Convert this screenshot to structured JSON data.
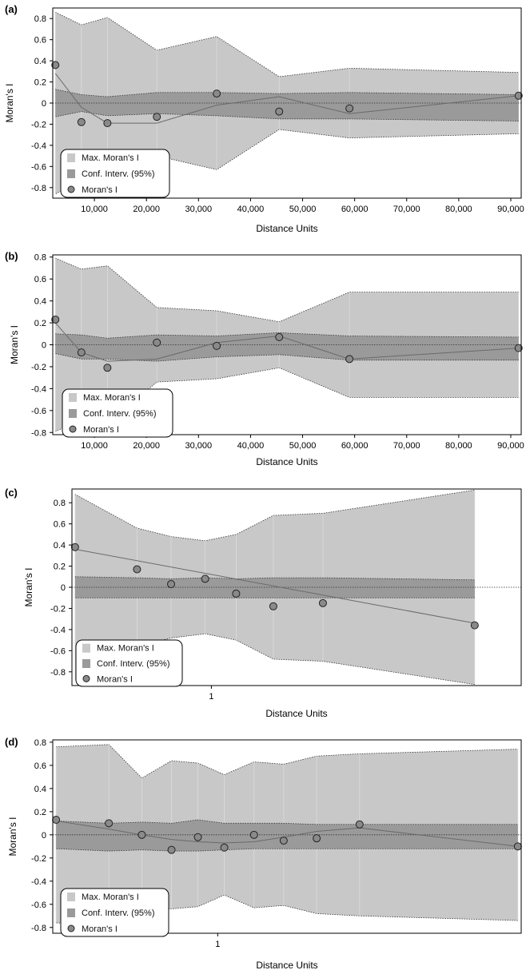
{
  "chart_data": [
    {
      "type": "area",
      "panel": "(a)",
      "xlabel": "Distance Units",
      "ylabel": "Moran's I",
      "xlim": [
        2000,
        92000
      ],
      "ylim": [
        -0.9,
        0.9
      ],
      "xticks": [
        10000,
        20000,
        30000,
        40000,
        50000,
        60000,
        70000,
        80000,
        90000
      ],
      "xtick_labels": [
        "10,000",
        "20,000",
        "30,000",
        "40,000",
        "50,000",
        "60,000",
        "70,000",
        "80,000",
        "90,000"
      ],
      "yticks": [
        0.8,
        0.6,
        0.4,
        0.2,
        0,
        -0.2,
        -0.4,
        -0.6,
        -0.8
      ],
      "ytick_labels": [
        "0.8",
        "0.6",
        "0.4",
        "0.2",
        "0",
        "-0.2",
        "-0.4",
        "-0.6",
        "-0.8"
      ],
      "legend": {
        "position": "bottom-left",
        "entries": [
          "Max. Moran's I",
          "Conf. Interv. (95%)",
          "Moran's I"
        ]
      },
      "series": [
        {
          "name": "Max. Moran's I",
          "x": [
            2500,
            7500,
            12500,
            22000,
            33500,
            45500,
            59000,
            91500
          ],
          "upper": [
            0.86,
            0.74,
            0.81,
            0.5,
            0.63,
            0.25,
            0.33,
            0.29
          ],
          "lower": [
            -0.86,
            -0.74,
            -0.81,
            -0.5,
            -0.63,
            -0.25,
            -0.33,
            -0.29
          ]
        },
        {
          "name": "Conf. Interv. (95%)",
          "x": [
            2500,
            7500,
            12500,
            22000,
            33500,
            45500,
            59000,
            91500
          ],
          "upper": [
            0.13,
            0.08,
            0.06,
            0.1,
            0.1,
            0.09,
            0.1,
            0.08
          ],
          "lower": [
            -0.13,
            -0.08,
            -0.12,
            -0.1,
            -0.12,
            -0.15,
            -0.15,
            -0.17
          ]
        },
        {
          "name": "Moran's I",
          "x": [
            2500,
            7500,
            12500,
            22000,
            33500,
            45500,
            59000,
            91500
          ],
          "values": [
            0.36,
            -0.18,
            -0.19,
            -0.13,
            0.09,
            -0.08,
            -0.05,
            0.07
          ]
        }
      ],
      "trend": {
        "x": [
          2500,
          7500,
          12500,
          22000,
          33500,
          45500,
          59000,
          91500
        ],
        "values": [
          0.28,
          -0.04,
          -0.19,
          -0.19,
          -0.02,
          0.06,
          -0.1,
          0.07
        ]
      }
    },
    {
      "type": "area",
      "panel": "(b)",
      "xlabel": "Distance Units",
      "ylabel": "Moran's I",
      "xlim": [
        2000,
        92000
      ],
      "ylim": [
        -0.82,
        0.82
      ],
      "xticks": [
        10000,
        20000,
        30000,
        40000,
        50000,
        60000,
        70000,
        80000,
        90000
      ],
      "xtick_labels": [
        "10,000",
        "20,000",
        "30,000",
        "40,000",
        "50,000",
        "60,000",
        "70,000",
        "80,000",
        "90,000"
      ],
      "yticks": [
        0.8,
        0.6,
        0.4,
        0.2,
        0,
        -0.2,
        -0.4,
        -0.6,
        -0.8
      ],
      "ytick_labels": [
        "0.8",
        "0.6",
        "0.4",
        "0.2",
        "0",
        "-0.2",
        "-0.4",
        "-0.6",
        "-0.8"
      ],
      "legend": {
        "position": "bottom-left",
        "entries": [
          "Max. Moran's I",
          "Conf. Interv. (95%)",
          "Moran's I"
        ]
      },
      "series": [
        {
          "name": "Max. Moran's I",
          "x": [
            2500,
            7500,
            12500,
            22000,
            33500,
            45500,
            59000,
            91500
          ],
          "upper": [
            0.79,
            0.69,
            0.72,
            0.34,
            0.31,
            0.21,
            0.48,
            0.48
          ],
          "lower": [
            -0.79,
            -0.69,
            -0.72,
            -0.34,
            -0.31,
            -0.21,
            -0.48,
            -0.48
          ]
        },
        {
          "name": "Conf. Interv. (95%)",
          "x": [
            2500,
            7500,
            12500,
            22000,
            33500,
            45500,
            59000,
            91500
          ],
          "upper": [
            0.1,
            0.09,
            0.06,
            0.09,
            0.08,
            0.11,
            0.08,
            0.07
          ],
          "lower": [
            -0.08,
            -0.13,
            -0.13,
            -0.15,
            -0.11,
            -0.09,
            -0.14,
            -0.14
          ]
        },
        {
          "name": "Moran's I",
          "x": [
            2500,
            7500,
            12500,
            22000,
            33500,
            45500,
            59000,
            91500
          ],
          "values": [
            0.23,
            -0.07,
            -0.21,
            0.02,
            -0.01,
            0.07,
            -0.13,
            -0.03
          ]
        }
      ],
      "trend": {
        "x": [
          2500,
          7500,
          12500,
          22000,
          33500,
          45500,
          59000,
          91500
        ],
        "values": [
          0.2,
          -0.07,
          -0.15,
          -0.13,
          0.02,
          0.08,
          -0.13,
          -0.03
        ]
      }
    },
    {
      "type": "area",
      "panel": "(c)",
      "xlabel": "Distance Units",
      "ylabel": "Moran's I",
      "xlim": [
        0.55,
        2.0
      ],
      "ylim": [
        -0.93,
        0.93
      ],
      "xticks": [
        1
      ],
      "xtick_labels": [
        "1"
      ],
      "yticks": [
        0.8,
        0.6,
        0.4,
        0.2,
        0,
        -0.2,
        -0.4,
        -0.6,
        -0.8
      ],
      "ytick_labels": [
        "0.8",
        "0.6",
        "0.4",
        "0.2",
        "0",
        "-0.2",
        "-0.4",
        "-0.6",
        "-0.8"
      ],
      "legend": {
        "position": "bottom-left",
        "entries": [
          "Max. Moran's I",
          "Conf. Interv. (95%)",
          "Moran's I"
        ]
      },
      "series": [
        {
          "name": "Max. Moran's I",
          "x": [
            0.56,
            0.76,
            0.87,
            0.98,
            1.08,
            1.2,
            1.36,
            1.85
          ],
          "upper": [
            0.88,
            0.56,
            0.48,
            0.44,
            0.5,
            0.68,
            0.7,
            0.92
          ],
          "lower": [
            -0.88,
            -0.56,
            -0.48,
            -0.44,
            -0.5,
            -0.68,
            -0.7,
            -0.92
          ]
        },
        {
          "name": "Conf. Interv. (95%)",
          "x": [
            0.56,
            0.76,
            0.87,
            0.98,
            1.08,
            1.2,
            1.36,
            1.85
          ],
          "upper": [
            0.1,
            0.09,
            0.08,
            0.09,
            0.08,
            0.09,
            0.09,
            0.07
          ],
          "lower": [
            -0.1,
            -0.1,
            -0.1,
            -0.1,
            -0.1,
            -0.1,
            -0.1,
            -0.1
          ]
        },
        {
          "name": "Moran's I",
          "x": [
            0.56,
            0.76,
            0.87,
            0.98,
            1.08,
            1.2,
            1.36,
            1.85
          ],
          "values": [
            0.38,
            0.17,
            0.03,
            0.08,
            -0.06,
            -0.18,
            -0.15,
            -0.36
          ]
        }
      ],
      "trend": {
        "x": [
          0.56,
          1.85
        ],
        "values": [
          0.36,
          -0.34
        ]
      }
    },
    {
      "type": "area",
      "panel": "(d)",
      "xlabel": "Distance Units",
      "ylabel": "Moran's I",
      "xlim": [
        0.5,
        1.92
      ],
      "ylim": [
        -0.85,
        0.82
      ],
      "xticks": [
        1
      ],
      "xtick_labels": [
        "1"
      ],
      "yticks": [
        0.8,
        0.6,
        0.4,
        0.2,
        0,
        -0.2,
        -0.4,
        -0.6,
        -0.8
      ],
      "ytick_labels": [
        "0.8",
        "0.6",
        "0.4",
        "0.2",
        "0",
        "-0.2",
        "-0.4",
        "-0.6",
        "-0.8"
      ],
      "legend": {
        "position": "bottom-left",
        "entries": [
          "Max. Moran's I",
          "Conf. Interv. (95%)",
          "Moran's I"
        ]
      },
      "series": [
        {
          "name": "Max. Moran's I",
          "x": [
            0.51,
            0.67,
            0.77,
            0.86,
            0.94,
            1.02,
            1.11,
            1.2,
            1.3,
            1.43,
            1.91
          ],
          "upper": [
            0.76,
            0.78,
            0.49,
            0.64,
            0.62,
            0.52,
            0.63,
            0.61,
            0.68,
            0.7,
            0.74
          ],
          "lower": [
            -0.76,
            -0.78,
            -0.65,
            -0.64,
            -0.62,
            -0.52,
            -0.63,
            -0.61,
            -0.68,
            -0.7,
            -0.74
          ]
        },
        {
          "name": "Conf. Interv. (95%)",
          "x": [
            0.51,
            0.67,
            0.77,
            0.86,
            0.94,
            1.02,
            1.11,
            1.2,
            1.3,
            1.43,
            1.91
          ],
          "upper": [
            0.12,
            0.1,
            0.11,
            0.1,
            0.13,
            0.1,
            0.1,
            0.1,
            0.09,
            0.09,
            0.09
          ],
          "lower": [
            -0.12,
            -0.14,
            -0.13,
            -0.14,
            -0.14,
            -0.13,
            -0.12,
            -0.12,
            -0.12,
            -0.12,
            -0.12
          ]
        },
        {
          "name": "Moran's I",
          "x": [
            0.51,
            0.67,
            0.77,
            0.86,
            0.94,
            1.02,
            1.11,
            1.2,
            1.3,
            1.43,
            1.91
          ],
          "values": [
            0.13,
            0.1,
            0.0,
            -0.13,
            -0.02,
            -0.11,
            0.0,
            -0.05,
            -0.03,
            0.09,
            -0.1
          ]
        }
      ],
      "trend": {
        "x": [
          0.51,
          0.67,
          0.77,
          0.86,
          0.94,
          1.02,
          1.11,
          1.2,
          1.3,
          1.43,
          1.91
        ],
        "values": [
          0.12,
          0.05,
          0.0,
          -0.04,
          -0.06,
          -0.07,
          -0.06,
          -0.02,
          0.03,
          0.06,
          -0.1
        ]
      }
    }
  ],
  "colors": {
    "max_band": "#c8c8c8",
    "conf_band": "#9a9a9a",
    "point_fill": "#8a8a8a",
    "point_stroke": "#222222",
    "trend_line": "#6a6a6a",
    "legend_bg": "#ffffff"
  }
}
